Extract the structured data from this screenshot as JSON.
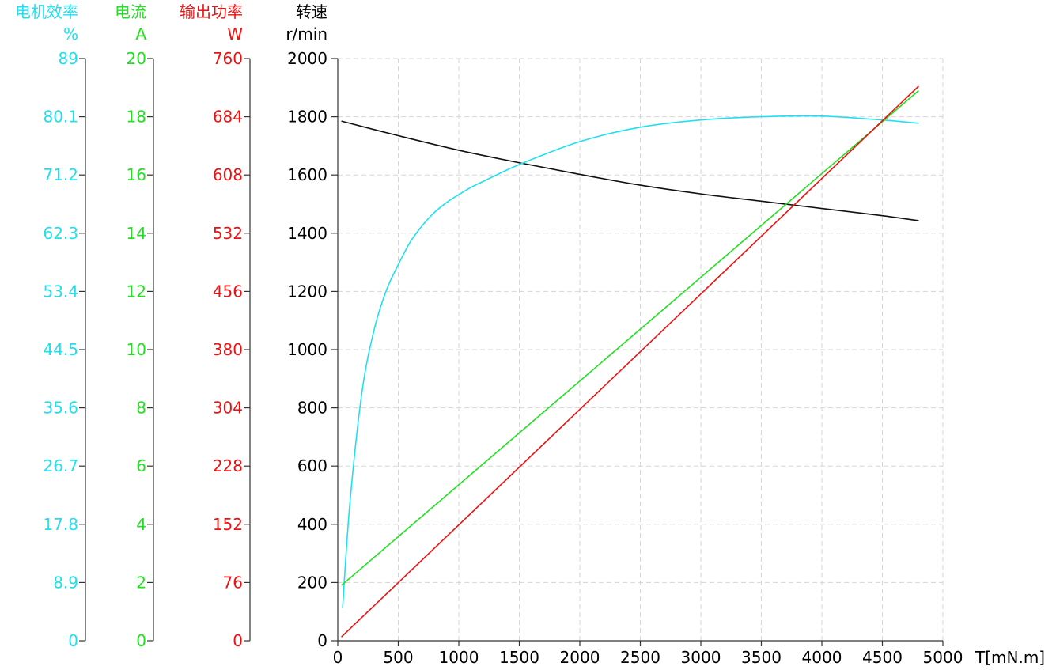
{
  "chart_data": {
    "type": "line",
    "x_axis": {
      "label": "T[mN.m]",
      "min": 0,
      "max": 5000,
      "ticks": [
        "0",
        "500",
        "1000",
        "1500",
        "2000",
        "2500",
        "3000",
        "3500",
        "4000",
        "4500",
        "5000"
      ]
    },
    "grid": true,
    "axes": [
      {
        "id": "efficiency",
        "title": "电机效率",
        "unit": "%",
        "color": "#20e0f0",
        "min": 0,
        "max": 89,
        "ticks": [
          "0",
          "8.9",
          "17.8",
          "26.7",
          "35.6",
          "44.5",
          "53.4",
          "62.3",
          "71.2",
          "80.1",
          "89"
        ]
      },
      {
        "id": "current",
        "title": "电流",
        "unit": "A",
        "color": "#20e020",
        "min": 0,
        "max": 20,
        "ticks": [
          "0",
          "2",
          "4",
          "6",
          "8",
          "10",
          "12",
          "14",
          "16",
          "18",
          "20"
        ]
      },
      {
        "id": "power",
        "title": "输出功率",
        "unit": "W",
        "color": "#ee1111",
        "min": 0,
        "max": 760,
        "ticks": [
          "0",
          "76",
          "152",
          "228",
          "304",
          "380",
          "456",
          "532",
          "608",
          "684",
          "760"
        ]
      },
      {
        "id": "speed",
        "title": "转速",
        "unit": "r/min",
        "color": "#111111",
        "min": 0,
        "max": 2000,
        "ticks": [
          "0",
          "200",
          "400",
          "600",
          "800",
          "1000",
          "1200",
          "1400",
          "1600",
          "1800",
          "2000"
        ]
      }
    ],
    "series": [
      {
        "axis": "speed",
        "color": "#111111",
        "x": [
          30,
          500,
          1000,
          1500,
          2000,
          2500,
          3000,
          3500,
          4000,
          4500,
          4800
        ],
        "y": [
          1785,
          1735,
          1685,
          1642,
          1602,
          1565,
          1535,
          1510,
          1485,
          1460,
          1443
        ]
      },
      {
        "axis": "efficiency",
        "color": "#20e0f0",
        "x": [
          40,
          100,
          200,
          300,
          400,
          500,
          600,
          700,
          800,
          900,
          1000,
          1100,
          1200,
          1500,
          2000,
          2500,
          3000,
          3500,
          4000,
          4500,
          4800
        ],
        "y": [
          5,
          21,
          38,
          47.5,
          53.5,
          57.5,
          61,
          63.5,
          65.5,
          67,
          68.2,
          69.3,
          70.2,
          72.8,
          76.3,
          78.5,
          79.6,
          80.1,
          80.2,
          79.6,
          79.1
        ]
      },
      {
        "axis": "current",
        "color": "#20e020",
        "x": [
          30,
          4800
        ],
        "y": [
          1.9,
          18.9
        ]
      },
      {
        "axis": "power",
        "color": "#ee1111",
        "x": [
          30,
          4800
        ],
        "y": [
          5,
          724
        ]
      }
    ]
  }
}
